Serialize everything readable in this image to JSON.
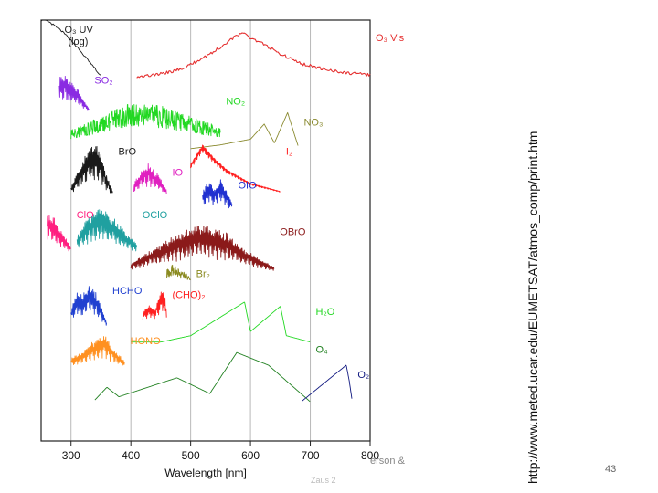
{
  "slide": {
    "vertical_url": "http://www.meted.ucar.edu/EUMETSAT/atmos_comp/print.htm",
    "citation": "erson &",
    "citation_line2": "Zaus 2",
    "slide_number": "43"
  },
  "chart_data": {
    "type": "line",
    "title": "",
    "xlabel": "Wavelength [nm]",
    "ylabel": "",
    "xlim": [
      250,
      800
    ],
    "xticks": [
      300,
      400,
      500,
      600,
      700,
      800
    ],
    "xtick_labels": [
      "300",
      "400",
      "500",
      "600",
      "700",
      "800"
    ],
    "grid_x": [
      300,
      400,
      500,
      600,
      700,
      800
    ],
    "y_units": "relative absorption cross-section (stacked, offset)",
    "series": [
      {
        "name": "O3 UV",
        "label": "O₃ UV (log)",
        "color": "#1a1a1a",
        "band": [
          0.0,
          0.14
        ],
        "style": "decay",
        "x": [
          250,
          260,
          270,
          280,
          290,
          300,
          310,
          320,
          330,
          340,
          345,
          350
        ],
        "y": [
          1.0,
          0.98,
          0.92,
          0.85,
          0.76,
          0.66,
          0.54,
          0.42,
          0.3,
          0.18,
          0.1,
          0.05
        ]
      },
      {
        "name": "O3 Vis",
        "label": "O₃ Vis",
        "color": "#e53030",
        "band": [
          0.02,
          0.14
        ],
        "style": "smooth",
        "x": [
          410,
          440,
          470,
          500,
          520,
          540,
          560,
          575,
          590,
          600,
          620,
          650,
          680,
          720,
          760,
          800
        ],
        "y": [
          0.05,
          0.08,
          0.15,
          0.28,
          0.42,
          0.55,
          0.72,
          0.85,
          0.9,
          0.82,
          0.7,
          0.5,
          0.32,
          0.2,
          0.12,
          0.08
        ]
      },
      {
        "name": "SO2",
        "label": "SO₂",
        "color": "#8a2be2",
        "band": [
          0.12,
          0.22
        ],
        "style": "spiky",
        "x": [
          280,
          290,
          300,
          310,
          320,
          330
        ],
        "y": [
          0.85,
          0.95,
          0.75,
          0.6,
          0.35,
          0.1
        ]
      },
      {
        "name": "NO2",
        "label": "NO₂",
        "color": "#22d822",
        "band": [
          0.17,
          0.3
        ],
        "style": "noisy",
        "x": [
          300,
          350,
          400,
          450,
          500,
          550
        ],
        "y": [
          0.3,
          0.55,
          0.8,
          0.75,
          0.55,
          0.35
        ]
      },
      {
        "name": "NO3",
        "label": "NO₃",
        "color": "#8a8a30",
        "band": [
          0.22,
          0.31
        ],
        "style": "peaks",
        "x": [
          500,
          550,
          600,
          623,
          640,
          662,
          680
        ],
        "y": [
          0.05,
          0.15,
          0.3,
          0.7,
          0.2,
          1.0,
          0.1
        ]
      },
      {
        "name": "BrO",
        "label": "BrO",
        "color": "#1a1a1a",
        "band": [
          0.29,
          0.42
        ],
        "style": "spiky",
        "x": [
          300,
          310,
          320,
          330,
          340,
          350,
          360,
          370
        ],
        "y": [
          0.2,
          0.45,
          0.7,
          0.9,
          1.0,
          0.8,
          0.4,
          0.1
        ]
      },
      {
        "name": "IO",
        "label": "IO",
        "color": "#e020c0",
        "band": [
          0.34,
          0.42
        ],
        "style": "spiky",
        "x": [
          405,
          420,
          430,
          445,
          460
        ],
        "y": [
          0.4,
          0.9,
          1.0,
          0.7,
          0.2
        ]
      },
      {
        "name": "I2",
        "label": "I₂",
        "color": "#ff2020",
        "band": [
          0.29,
          0.42
        ],
        "style": "bump",
        "x": [
          500,
          520,
          540,
          560,
          600,
          650
        ],
        "y": [
          0.6,
          0.95,
          0.7,
          0.5,
          0.25,
          0.1
        ]
      },
      {
        "name": "OIO",
        "label": "OIO",
        "color": "#2030d0",
        "band": [
          0.37,
          0.46
        ],
        "style": "spiky",
        "x": [
          520,
          530,
          540,
          550,
          560,
          570
        ],
        "y": [
          0.6,
          0.9,
          0.7,
          1.0,
          0.6,
          0.3
        ]
      },
      {
        "name": "ClO",
        "label": "ClO",
        "color": "#ff2080",
        "band": [
          0.44,
          0.56
        ],
        "style": "spiky",
        "x": [
          260,
          270,
          280,
          290,
          300
        ],
        "y": [
          0.9,
          0.8,
          0.6,
          0.4,
          0.2
        ]
      },
      {
        "name": "OClO",
        "label": "OClO",
        "color": "#20a0a0",
        "band": [
          0.44,
          0.56
        ],
        "style": "spiky",
        "x": [
          310,
          330,
          350,
          370,
          390,
          410
        ],
        "y": [
          0.4,
          0.8,
          1.0,
          0.8,
          0.5,
          0.25
        ]
      },
      {
        "name": "OBrO",
        "label": "OBrO",
        "color": "#8b1a1a",
        "band": [
          0.48,
          0.6
        ],
        "style": "spiky",
        "x": [
          400,
          440,
          480,
          520,
          560,
          600,
          640
        ],
        "y": [
          0.2,
          0.5,
          0.8,
          1.0,
          0.8,
          0.4,
          0.1
        ]
      },
      {
        "name": "Br2",
        "label": "Br₂",
        "color": "#8a8a20",
        "band": [
          0.58,
          0.63
        ],
        "style": "noisy",
        "x": [
          460,
          470,
          480,
          490,
          500
        ],
        "y": [
          0.8,
          1.0,
          0.8,
          0.6,
          0.4
        ]
      },
      {
        "name": "HCHO",
        "label": "HCHO",
        "color": "#2040d0",
        "band": [
          0.62,
          0.73
        ],
        "style": "spiky",
        "x": [
          300,
          310,
          320,
          330,
          340,
          350,
          360
        ],
        "y": [
          0.4,
          0.8,
          0.7,
          1.0,
          0.8,
          0.5,
          0.1
        ]
      },
      {
        "name": "(CHO)2",
        "label": "(CHO)₂",
        "color": "#ff2020",
        "band": [
          0.63,
          0.72
        ],
        "style": "spiky",
        "x": [
          420,
          430,
          440,
          450,
          455,
          460
        ],
        "y": [
          0.3,
          0.5,
          0.4,
          0.8,
          1.0,
          0.3
        ]
      },
      {
        "name": "H2O",
        "label": "H₂O",
        "color": "#22d822",
        "band": [
          0.67,
          0.77
        ],
        "style": "peaks",
        "x": [
          400,
          450,
          500,
          590,
          600,
          650,
          660,
          700
        ],
        "y": [
          0.05,
          0.05,
          0.2,
          1.0,
          0.3,
          0.9,
          0.2,
          0.05
        ]
      },
      {
        "name": "HONO",
        "label": "HONO",
        "color": "#ff9020",
        "band": [
          0.74,
          0.83
        ],
        "style": "spiky",
        "x": [
          300,
          320,
          340,
          355,
          370,
          390
        ],
        "y": [
          0.3,
          0.5,
          0.8,
          1.0,
          0.6,
          0.2
        ]
      },
      {
        "name": "O4",
        "label": "O₄",
        "color": "#208020",
        "band": [
          0.76,
          0.91
        ],
        "style": "peaks",
        "x": [
          340,
          360,
          380,
          477,
          532,
          577,
          630,
          700
        ],
        "y": [
          0.05,
          0.25,
          0.1,
          0.4,
          0.15,
          0.8,
          0.6,
          0.02
        ]
      },
      {
        "name": "O2",
        "label": "O₂",
        "color": "#101880",
        "band": [
          0.82,
          0.91
        ],
        "style": "peaks",
        "x": [
          686,
          760,
          765,
          770
        ],
        "y": [
          0.05,
          1.0,
          0.6,
          0.05
        ]
      }
    ]
  }
}
